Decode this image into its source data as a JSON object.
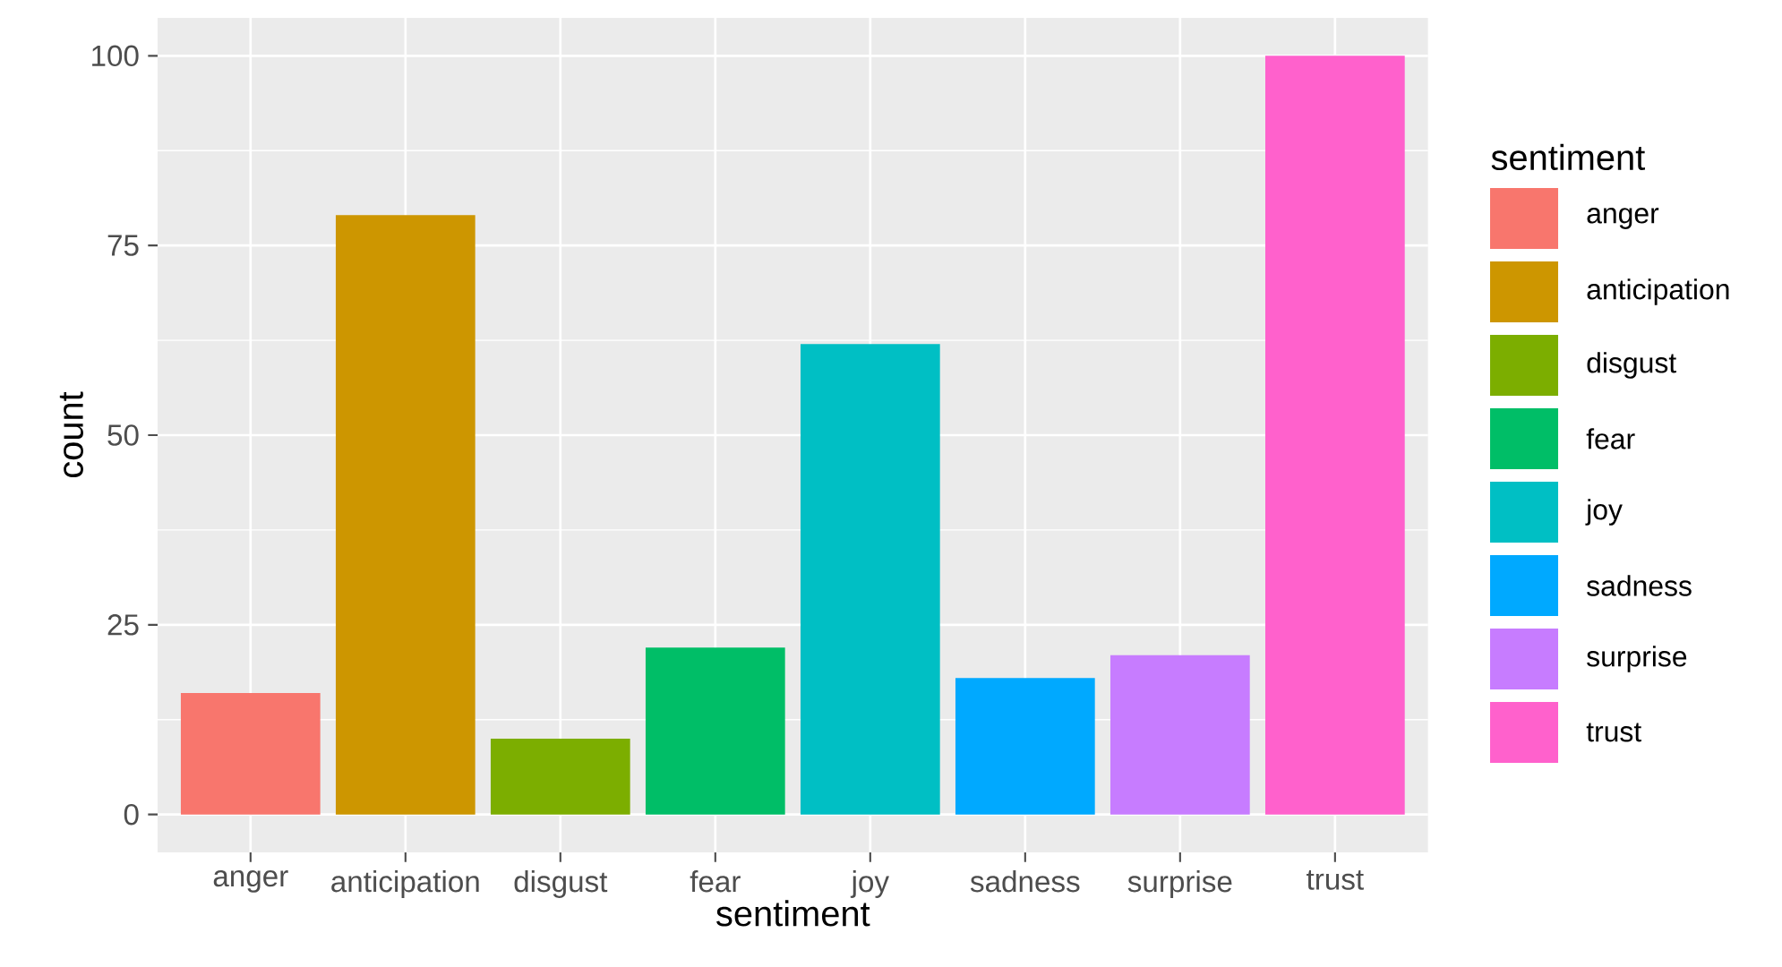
{
  "chart_data": {
    "type": "bar",
    "categories": [
      "anger",
      "anticipation",
      "disgust",
      "fear",
      "joy",
      "sadness",
      "surprise",
      "trust"
    ],
    "series": [
      {
        "name": "anger",
        "color": "#f8766d",
        "values": [
          16,
          null,
          null,
          null,
          null,
          null,
          null,
          null
        ]
      },
      {
        "name": "anticipation",
        "color": "#cd9600",
        "values": [
          null,
          79,
          null,
          null,
          null,
          null,
          null,
          null
        ]
      },
      {
        "name": "disgust",
        "color": "#7cae00",
        "values": [
          null,
          null,
          10,
          null,
          null,
          null,
          null,
          null
        ]
      },
      {
        "name": "fear",
        "color": "#00be67",
        "values": [
          null,
          null,
          null,
          22,
          null,
          null,
          null,
          null
        ]
      },
      {
        "name": "joy",
        "color": "#00bfc4",
        "values": [
          null,
          null,
          null,
          null,
          62,
          null,
          null,
          null
        ]
      },
      {
        "name": "sadness",
        "color": "#00a9ff",
        "values": [
          null,
          null,
          null,
          null,
          null,
          18,
          null,
          null
        ]
      },
      {
        "name": "surprise",
        "color": "#c77cff",
        "values": [
          null,
          null,
          null,
          null,
          null,
          null,
          21,
          null
        ]
      },
      {
        "name": "trust",
        "color": "#ff61cc",
        "values": [
          null,
          null,
          null,
          null,
          null,
          null,
          null,
          100
        ]
      }
    ],
    "xlabel": "sentiment",
    "ylabel": "count",
    "legend_title": "sentiment",
    "legend": "right",
    "ylim": [
      -5,
      105
    ],
    "yticks": [
      0,
      25,
      50,
      75,
      100
    ],
    "grid": true
  }
}
